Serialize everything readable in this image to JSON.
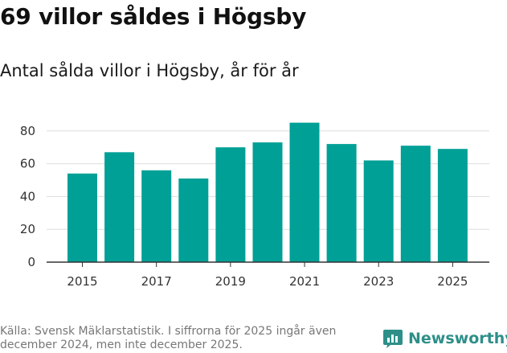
{
  "header": {
    "title": "69 villor såldes i Högsby",
    "subtitle": "Antal sålda villor i Högsby, år för år"
  },
  "footer": {
    "source": "Källa: Svensk Mäklarstatistik. I siffrorna för 2025 ingår även december 2024, men inte december 2025.",
    "brand": "Newsworthy"
  },
  "colors": {
    "bar": "#00A096",
    "grid": "#DDDDDD",
    "axis": "#333333",
    "brand": "#2E8F89"
  },
  "chart_data": {
    "type": "bar",
    "title": "Antal sålda villor i Högsby, år för år",
    "xlabel": "",
    "ylabel": "",
    "categories": [
      "2015",
      "2016",
      "2017",
      "2018",
      "2019",
      "2020",
      "2021",
      "2022",
      "2023",
      "2024",
      "2025"
    ],
    "values": [
      54,
      67,
      56,
      51,
      70,
      73,
      85,
      72,
      62,
      71,
      69
    ],
    "ylim": [
      0,
      90
    ],
    "yticks": [
      0,
      20,
      40,
      60,
      80
    ],
    "xtick_labels": [
      "2015",
      "2017",
      "2019",
      "2021",
      "2023",
      "2025"
    ],
    "grid": true,
    "legend": "none"
  }
}
